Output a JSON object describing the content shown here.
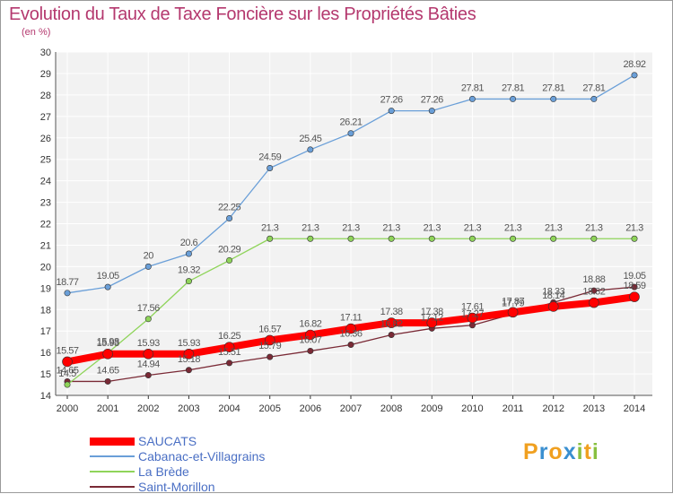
{
  "title": "Evolution du Taux de Taxe Foncière sur les Propriétés Bâties",
  "subtitle": "(en %)",
  "logo": {
    "text": "Proxiti",
    "letters": [
      "P",
      "r",
      "o",
      "x",
      "i",
      "t",
      "i"
    ],
    "colors": [
      "#f0a020",
      "#3a8fd0",
      "#f0a020",
      "#3a8fd0",
      "#88c040",
      "#f0a020",
      "#88c040"
    ]
  },
  "chart_data": {
    "type": "line",
    "x": [
      "2000",
      "2001",
      "2002",
      "2003",
      "2004",
      "2005",
      "2006",
      "2007",
      "2008",
      "2009",
      "2010",
      "2011",
      "2012",
      "2013",
      "2014"
    ],
    "ylim": [
      14,
      30
    ],
    "yticks": [
      "14",
      "15",
      "16",
      "17",
      "18",
      "19",
      "20",
      "21",
      "22",
      "23",
      "24",
      "25",
      "26",
      "27",
      "28",
      "29",
      "30"
    ],
    "grid": true,
    "legend": "bottom-left",
    "series": [
      {
        "name": "Saint-Morillon",
        "color": "#7a2a36",
        "values": [
          14.65,
          14.65,
          14.94,
          15.18,
          15.51,
          15.79,
          16.07,
          16.36,
          16.82,
          17.12,
          17.27,
          17.79,
          18.33,
          18.88,
          19.05
        ],
        "labels": [
          "14.65",
          "14.65",
          "14.94",
          "15.18",
          "15.51",
          "15.79",
          "16.07",
          "16.36",
          "16.82",
          "17.12",
          "17.27",
          "17.79",
          "18.33",
          "18.88",
          "19.05"
        ]
      },
      {
        "name": "La Brède",
        "color": "#8fd45a",
        "values": [
          14.5,
          15.98,
          17.56,
          19.32,
          20.29,
          21.3,
          21.3,
          21.3,
          21.3,
          21.3,
          21.3,
          21.3,
          21.3,
          21.3,
          21.3
        ],
        "labels": [
          "14.5",
          "15.98",
          "17.56",
          "19.32",
          "20.29",
          "21.3",
          "21.3",
          "21.3",
          "21.3",
          "21.3",
          "21.3",
          "21.3",
          "21.3",
          "21.3",
          "21.3"
        ]
      },
      {
        "name": "Cabanac-et-Villagrains",
        "color": "#6a9fd8",
        "values": [
          18.77,
          19.05,
          20,
          20.6,
          22.25,
          24.59,
          25.45,
          26.21,
          27.26,
          27.26,
          27.81,
          27.81,
          27.81,
          27.81,
          28.92
        ],
        "labels": [
          "18.77",
          "19.05",
          "20",
          "20.6",
          "22.25",
          "24.59",
          "25.45",
          "26.21",
          "27.26",
          "27.26",
          "27.81",
          "27.81",
          "27.81",
          "27.81",
          "28.92"
        ]
      },
      {
        "name": "SAUCATS",
        "color": "#ff0000",
        "values": [
          15.57,
          15.93,
          15.93,
          15.93,
          16.25,
          16.57,
          16.82,
          17.11,
          17.38,
          17.38,
          17.61,
          17.87,
          18.14,
          18.32,
          18.59
        ],
        "labels": [
          "15.57",
          "15.93",
          "15.93",
          "15.93",
          "16.25",
          "16.57",
          "16.82",
          "17.11",
          "17.38",
          "17.38",
          "17.61",
          "17.87",
          "18.14",
          "18.32",
          "18.59"
        ]
      }
    ],
    "legend_order": [
      "SAUCATS",
      "Cabanac-et-Villagrains",
      "La Brède",
      "Saint-Morillon"
    ]
  }
}
